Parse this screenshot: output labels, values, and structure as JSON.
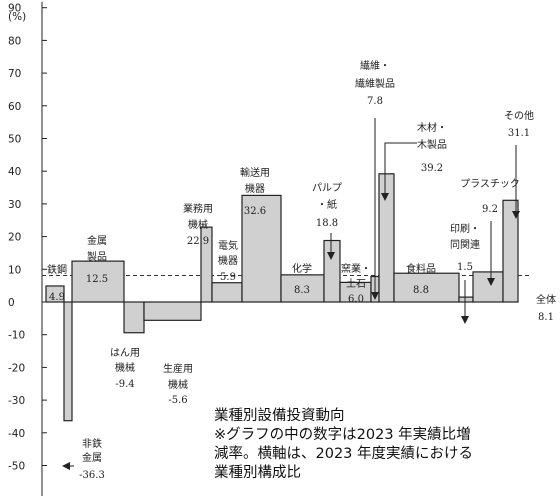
{
  "chart_data": {
    "type": "bar",
    "unit_label": "(%)",
    "ylim": [
      -50,
      90
    ],
    "yticks": [
      90,
      80,
      70,
      60,
      50,
      40,
      30,
      20,
      10,
      0,
      -10,
      -20,
      -30,
      -40,
      -50
    ],
    "grid": false,
    "bar_color": "#d0d0d0",
    "bars": [
      {
        "label": "鉄鋼",
        "value": 4.9,
        "value_text": "4.9"
      },
      {
        "label": "非鉄\n金属",
        "value": -36.3,
        "value_text": "-36.3"
      },
      {
        "label": "金属\n製品",
        "value": 12.5,
        "value_text": "12.5"
      },
      {
        "label": "はん用\n機械",
        "value": -9.4,
        "value_text": "-9.4"
      },
      {
        "label": "生産用\n機械",
        "value": -5.6,
        "value_text": "-5.6"
      },
      {
        "label": "業務用\n機械",
        "value": 22.9,
        "value_text": "22.9"
      },
      {
        "label": "電気\n機器",
        "value": 5.9,
        "value_text": "5.9"
      },
      {
        "label": "輸送用\n機器",
        "value": 32.6,
        "value_text": "32.6"
      },
      {
        "label": "化学",
        "value": 8.3,
        "value_text": "8.3"
      },
      {
        "label": "パルプ\n・紙",
        "value": 18.8,
        "value_text": "18.8"
      },
      {
        "label": "窯業・\n土石",
        "value": 6.0,
        "value_text": "6.0"
      },
      {
        "label": "繊維・\n繊維製品",
        "value": 7.8,
        "value_text": "7.8"
      },
      {
        "label": "木材・\n木製品",
        "value": 39.2,
        "value_text": "39.2"
      },
      {
        "label": "食料品",
        "value": 8.8,
        "value_text": "8.8"
      },
      {
        "label": "印刷・\n同関連",
        "value": 1.5,
        "value_text": "1.5"
      },
      {
        "label": "プラスチック",
        "value": 9.2,
        "value_text": "9.2"
      },
      {
        "label": "その他",
        "value": 31.1,
        "value_text": "31.1"
      }
    ],
    "reference_line": {
      "label": "全体",
      "value": 8.1,
      "value_text": "8.1"
    },
    "caption_lines": [
      "業種別設備投資動向",
      "※グラフの中の数字は2023 年実績比増",
      "減率。横軸は、2023 年度実績における",
      "業種別構成比"
    ]
  }
}
